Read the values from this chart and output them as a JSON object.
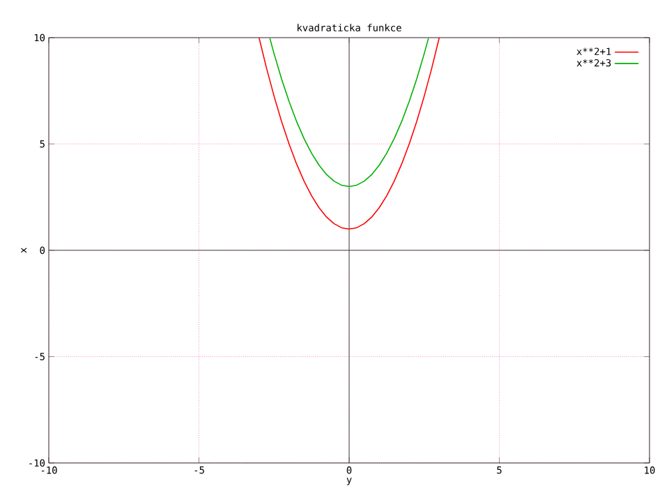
{
  "chart_data": {
    "type": "line",
    "title": "kvadraticka funkce",
    "xlabel": "y",
    "ylabel": "x",
    "xlim": [
      -10,
      10
    ],
    "ylim": [
      -10,
      10
    ],
    "xticks": [
      -10,
      -5,
      0,
      5,
      10
    ],
    "yticks": [
      -10,
      -5,
      0,
      5,
      10
    ],
    "grid": true,
    "legend": "top right",
    "series": [
      {
        "name": "x**2+1",
        "color": "#ff0000",
        "x": [
          -3,
          -2.75,
          -2.5,
          -2.25,
          -2,
          -1.75,
          -1.5,
          -1.25,
          -1,
          -0.75,
          -0.5,
          -0.25,
          0,
          0.25,
          0.5,
          0.75,
          1,
          1.25,
          1.5,
          1.75,
          2,
          2.25,
          2.5,
          2.75,
          3
        ],
        "values": [
          10,
          8.56,
          7.25,
          6.06,
          5,
          4.06,
          3.25,
          2.56,
          2,
          1.56,
          1.25,
          1.06,
          1,
          1.06,
          1.25,
          1.56,
          2,
          2.56,
          3.25,
          4.06,
          5,
          6.06,
          7.25,
          8.56,
          10
        ]
      },
      {
        "name": "x**2+3",
        "color": "#00b000",
        "x": [
          -2.64,
          -2.5,
          -2.25,
          -2,
          -1.75,
          -1.5,
          -1.25,
          -1,
          -0.75,
          -0.5,
          -0.25,
          0,
          0.25,
          0.5,
          0.75,
          1,
          1.25,
          1.5,
          1.75,
          2,
          2.25,
          2.5,
          2.64
        ],
        "values": [
          9.97,
          9.25,
          8.06,
          7,
          6.06,
          5.25,
          4.56,
          4,
          3.56,
          3.25,
          3.06,
          3,
          3.06,
          3.25,
          3.56,
          4,
          4.56,
          5.25,
          6.06,
          7,
          8.06,
          9.25,
          9.97
        ]
      }
    ]
  }
}
